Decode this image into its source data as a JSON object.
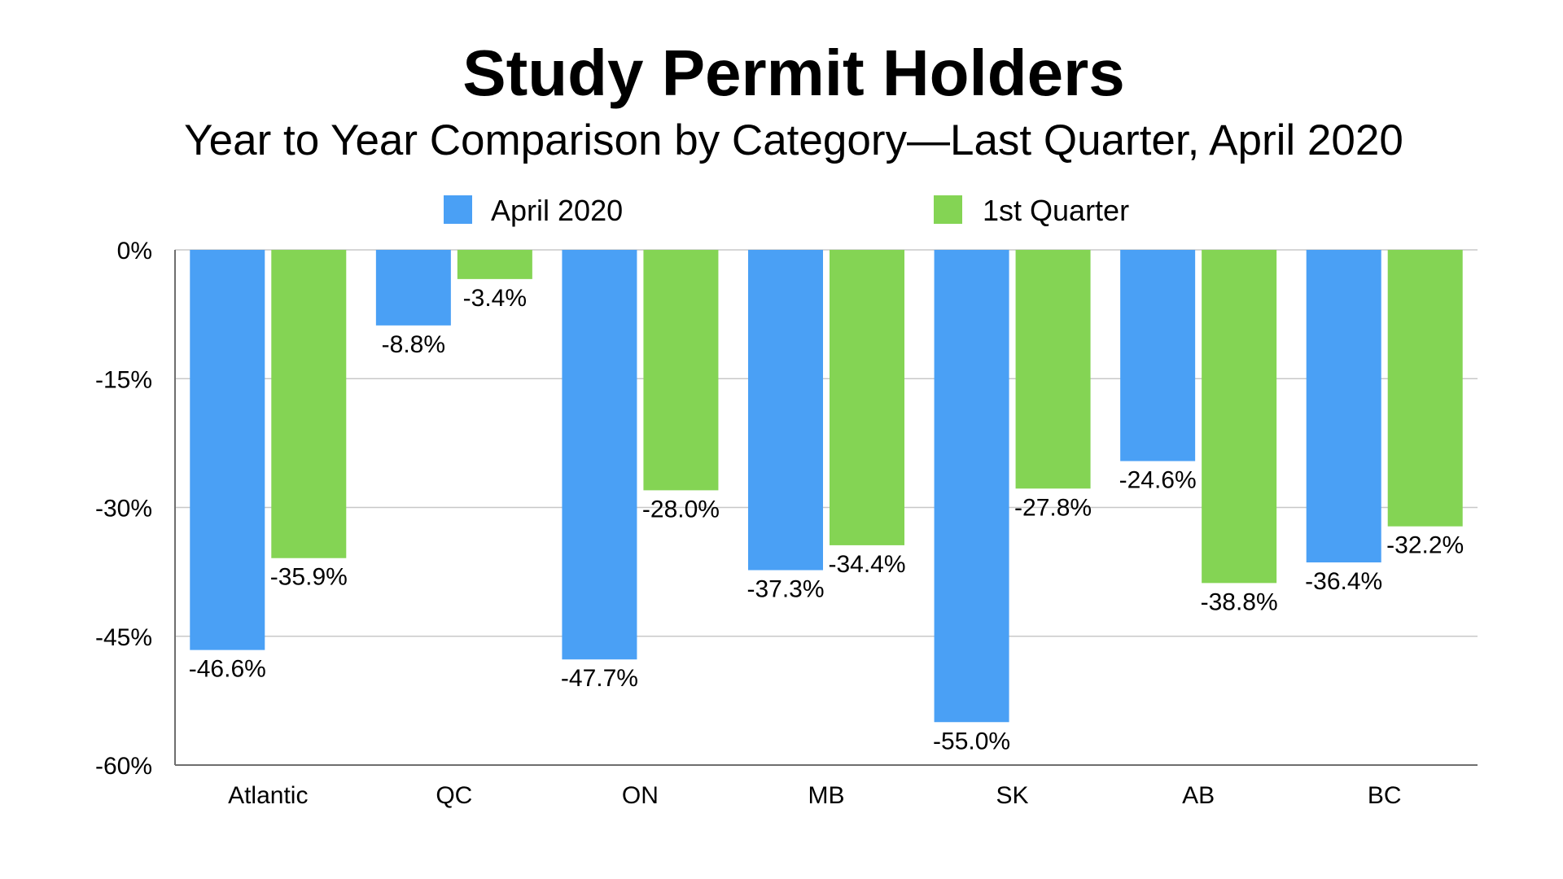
{
  "chart_data": {
    "type": "bar",
    "title": "Study Permit Holders",
    "subtitle": "Year to Year Comparison by Category—Last Quarter, April 2020",
    "categories": [
      "Atlantic",
      "QC",
      "ON",
      "MB",
      "SK",
      "AB",
      "BC"
    ],
    "series": [
      {
        "name": "April 2020",
        "color": "#4aa0f5",
        "values": [
          -46.6,
          -8.8,
          -47.7,
          -37.3,
          -55.0,
          -24.6,
          -36.4
        ],
        "labels": [
          "-46.6%",
          "-8.8%",
          "-47.7%",
          "-37.3%",
          "-55.0%",
          "-24.6%",
          "-36.4%"
        ]
      },
      {
        "name": "1st Quarter",
        "color": "#84d454",
        "values": [
          -35.9,
          -3.4,
          -28.0,
          -34.4,
          -27.8,
          -38.8,
          -32.2
        ],
        "labels": [
          "-35.9%",
          "-3.4%",
          "-28.0%",
          "-34.4%",
          "-27.8%",
          "-38.8%",
          "-32.2%"
        ]
      }
    ],
    "ylim": [
      -60,
      0
    ],
    "yticks": [
      0,
      -15,
      -30,
      -45,
      -60
    ],
    "ytick_labels": [
      "0%",
      "-15%",
      "-30%",
      "-45%",
      "-60%"
    ],
    "xlabel": "",
    "ylabel": "",
    "grid": true,
    "legend_position": "top"
  }
}
